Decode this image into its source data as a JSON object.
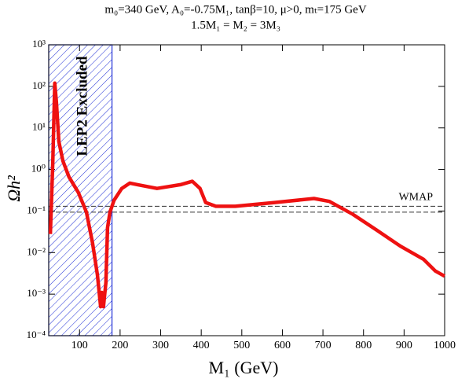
{
  "chart_data": {
    "type": "line",
    "title": [
      "m₀=340 GeV,  A₀=-0.75M₁, tanβ=10, μ>0, mₜ=175 GeV",
      "1.5M₁ = M₂ = 3M₃"
    ],
    "x_label": "M₁ (GeV)",
    "y_label": "Ωh²",
    "log_y": true,
    "xlim": [
      24,
      1000
    ],
    "ylim": [
      0.0001,
      1000
    ],
    "xticks": [
      100,
      200,
      300,
      400,
      500,
      600,
      700,
      800,
      900,
      1000
    ],
    "yticks": [
      {
        "value": 0.0001,
        "label": "10⁻⁴"
      },
      {
        "value": 0.001,
        "label": "10⁻³"
      },
      {
        "value": 0.01,
        "label": "10⁻²"
      },
      {
        "value": 0.1,
        "label": "10⁻¹"
      },
      {
        "value": 1,
        "label": "10⁰"
      },
      {
        "value": 10,
        "label": "10¹"
      },
      {
        "value": 100,
        "label": "10²"
      },
      {
        "value": 1000,
        "label": "10³"
      }
    ],
    "excluded_region": {
      "label": "LEP2 Excluded",
      "x": [
        24,
        180
      ],
      "color": "#1f2fd6"
    },
    "band": {
      "label": "WMAP",
      "values": [
        0.094,
        0.13
      ]
    },
    "series": [
      {
        "color": "#ee1111",
        "x": [
          28,
          34,
          39,
          43,
          49,
          59,
          74,
          97,
          117,
          132,
          144,
          152,
          155,
          159,
          165,
          169,
          175,
          185,
          204,
          224,
          243,
          291,
          349,
          378,
          397,
          411,
          436,
          484,
          581,
          678,
          716,
          774,
          832,
          890,
          948,
          977,
          1000
        ],
        "values": [
          0.028,
          1.5,
          120,
          42,
          4.7,
          1.6,
          0.66,
          0.28,
          0.094,
          0.017,
          0.0029,
          0.0005,
          0.0011,
          0.0005,
          0.0019,
          0.04,
          0.094,
          0.18,
          0.35,
          0.47,
          0.43,
          0.35,
          0.43,
          0.52,
          0.35,
          0.16,
          0.13,
          0.13,
          0.16,
          0.2,
          0.17,
          0.083,
          0.035,
          0.0145,
          0.0069,
          0.0036,
          0.0027
        ]
      }
    ]
  }
}
